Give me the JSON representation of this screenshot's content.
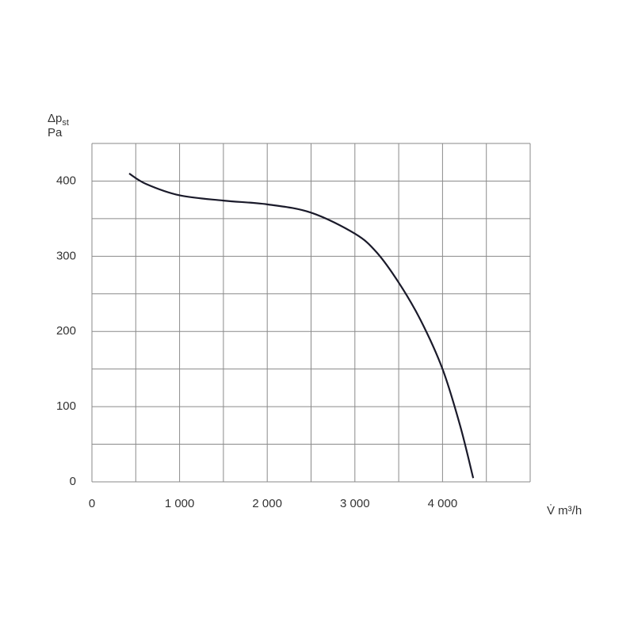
{
  "chart_data": {
    "type": "line",
    "y_label": "Δp",
    "y_label_sub": "st",
    "y_unit": "Pa",
    "x_label": "V̇ m³/h",
    "xlim": [
      0,
      5000
    ],
    "ylim": [
      0,
      450
    ],
    "xticks": [
      0,
      {
        "value": 1000,
        "label": "1 000"
      },
      {
        "value": 2000,
        "label": "2 000"
      },
      {
        "value": 3000,
        "label": "3 000"
      },
      {
        "value": 4000,
        "label": "4 000"
      }
    ],
    "yticks": [
      0,
      100,
      200,
      300,
      400
    ],
    "x_grid": [
      0,
      500,
      1000,
      1500,
      2000,
      2500,
      3000,
      3500,
      4000,
      4500,
      5000
    ],
    "y_grid": [
      0,
      50,
      100,
      150,
      200,
      250,
      300,
      350,
      400,
      450
    ],
    "grid": true,
    "series": [
      {
        "color": "#1a1a2a",
        "x": [
          425,
          620,
          1000,
          1500,
          2000,
          2500,
          3000,
          3250,
          3500,
          3750,
          4000,
          4200,
          4350
        ],
        "values": [
          410,
          396,
          381,
          374,
          369,
          358,
          330,
          305,
          265,
          215,
          150,
          75,
          5
        ]
      }
    ]
  }
}
